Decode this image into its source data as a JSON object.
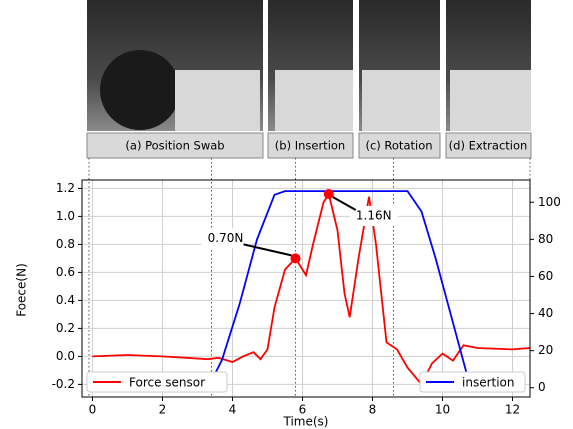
{
  "panels": [
    "(a) Position Swab",
    "(b) Insertion",
    "(c) Rotation",
    "(d) Extraction"
  ],
  "chart_data": {
    "type": "line",
    "xlabel": "Time(s)",
    "ylabel": "Foece(N)",
    "xlim": [
      -0.3,
      12.5
    ],
    "ylim": [
      -0.29,
      1.26
    ],
    "y2lim": [
      -5,
      112
    ],
    "xticks": [
      0,
      2,
      4,
      6,
      8,
      10,
      12
    ],
    "yticks": [
      -0.2,
      {
        "value": 0,
        "label": "0.0"
      },
      0.2,
      0.4,
      0.6,
      0.8,
      {
        "value": 1,
        "label": "1.0"
      },
      1.2
    ],
    "y2ticks": [
      0,
      20,
      40,
      60,
      80,
      100
    ],
    "grid": true,
    "phase_lines": [
      -0.1,
      3.4,
      5.8,
      8.6,
      12.5
    ],
    "series": [
      {
        "name": "Force sensor",
        "color": "#ff0000",
        "axis": "y",
        "legend": "lower left",
        "x": [
          0,
          1,
          2,
          3.3,
          3.6,
          4.0,
          4.3,
          4.6,
          4.8,
          5.0,
          5.2,
          5.5,
          5.8,
          6.1,
          6.3,
          6.6,
          6.75,
          7.0,
          7.2,
          7.35,
          7.6,
          7.9,
          8.1,
          8.4,
          8.7,
          9.0,
          9.4,
          9.7,
          10.0,
          10.3,
          10.6,
          11,
          12,
          12.5
        ],
        "values": [
          0,
          0.01,
          0,
          -0.02,
          -0.01,
          -0.04,
          0,
          0.03,
          -0.02,
          0.05,
          0.35,
          0.62,
          0.7,
          0.58,
          0.8,
          1.1,
          1.16,
          0.9,
          0.45,
          0.28,
          0.7,
          1.14,
          0.8,
          0.1,
          0.05,
          -0.08,
          -0.2,
          -0.05,
          0.02,
          -0.03,
          0.08,
          0.06,
          0.05,
          0.06
        ]
      },
      {
        "name": "insertion",
        "color": "#0000ff",
        "axis": "y2",
        "legend": "lower right",
        "x": [
          0,
          3.3,
          3.7,
          4.2,
          4.7,
          5.2,
          5.5,
          9.0,
          9.4,
          9.8,
          10.3,
          10.8
        ],
        "values": [
          0,
          0,
          15,
          45,
          80,
          104,
          106,
          106,
          95,
          70,
          35,
          0
        ]
      }
    ],
    "annotations": [
      {
        "text": "0.70N",
        "x": 5.8,
        "y": 0.7
      },
      {
        "text": "1.16N",
        "x": 6.75,
        "y": 1.16
      }
    ]
  }
}
